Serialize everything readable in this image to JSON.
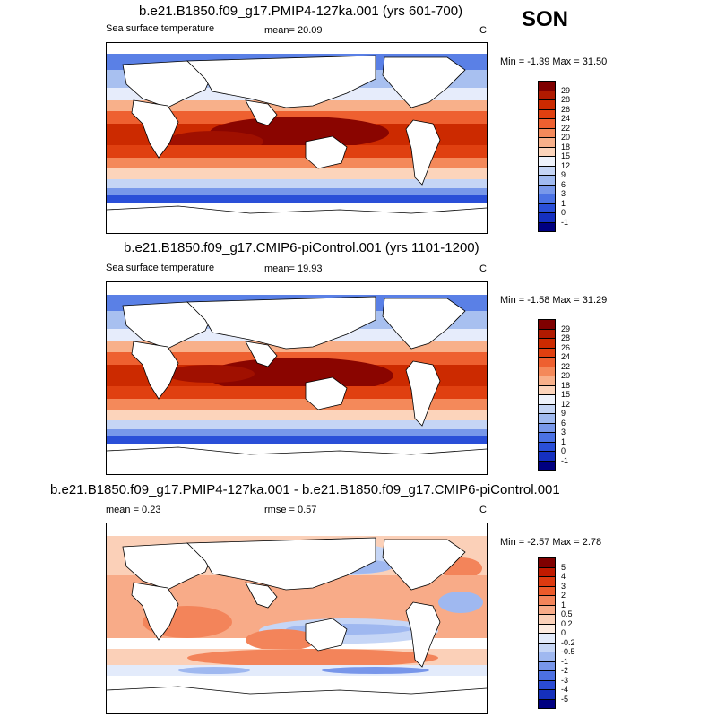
{
  "season": "SON",
  "panels": [
    {
      "title": "b.e21.B1850.f09_g17.PMIP4-127ka.001 (yrs 601-700)",
      "left_label": "Sea surface temperature",
      "mid_label": "mean=  20.09",
      "units": "C",
      "minmax": "Min =  -1.39 Max =  31.50",
      "colorbar": {
        "labels": [
          "29",
          "28",
          "26",
          "24",
          "22",
          "20",
          "18",
          "15",
          "12",
          "9",
          "6",
          "3",
          "1",
          "0",
          "-1"
        ],
        "colors": [
          "#7f0000",
          "#b01a00",
          "#cc2a00",
          "#e04010",
          "#ee6030",
          "#f4895a",
          "#f8b08a",
          "#fcd4bb",
          "#eef2fb",
          "#c5d5f5",
          "#a0baf0",
          "#7898ea",
          "#4b72e4",
          "#2a4fd8",
          "#1530c0",
          "#000080"
        ]
      }
    },
    {
      "title": "b.e21.B1850.f09_g17.CMIP6-piControl.001 (yrs 1101-1200)",
      "left_label": "Sea surface temperature",
      "mid_label": "mean=  19.93",
      "units": "C",
      "minmax": "Min =  -1.58 Max =  31.29",
      "colorbar": {
        "labels": [
          "29",
          "28",
          "26",
          "24",
          "22",
          "20",
          "18",
          "15",
          "12",
          "9",
          "6",
          "3",
          "1",
          "0",
          "-1"
        ],
        "colors": [
          "#7f0000",
          "#b01a00",
          "#cc2a00",
          "#e04010",
          "#ee6030",
          "#f4895a",
          "#f8b08a",
          "#fcd4bb",
          "#eef2fb",
          "#c5d5f5",
          "#a0baf0",
          "#7898ea",
          "#4b72e4",
          "#2a4fd8",
          "#1530c0",
          "#000080"
        ]
      }
    },
    {
      "title": "b.e21.B1850.f09_g17.PMIP4-127ka.001 - b.e21.B1850.f09_g17.CMIP6-piControl.001",
      "left_label": "mean =   0.23",
      "mid_label": "rmse =   0.57",
      "units": "C",
      "minmax": "Min =  -2.57 Max =   2.78",
      "colorbar": {
        "labels": [
          "5",
          "4",
          "3",
          "2",
          "1",
          "0.5",
          "0.2",
          "0",
          "-0.2",
          "-0.5",
          "-1",
          "-2",
          "-3",
          "-4",
          "-5"
        ],
        "colors": [
          "#7f0000",
          "#c01a00",
          "#dd3a10",
          "#ec5a2a",
          "#f3845a",
          "#f8ab88",
          "#fbd0b8",
          "#fdebe0",
          "#e3ebfb",
          "#c6d6f6",
          "#9fb8f0",
          "#7896ea",
          "#4c70e2",
          "#2a4bd4",
          "#1530bb",
          "#000080"
        ]
      }
    }
  ]
}
